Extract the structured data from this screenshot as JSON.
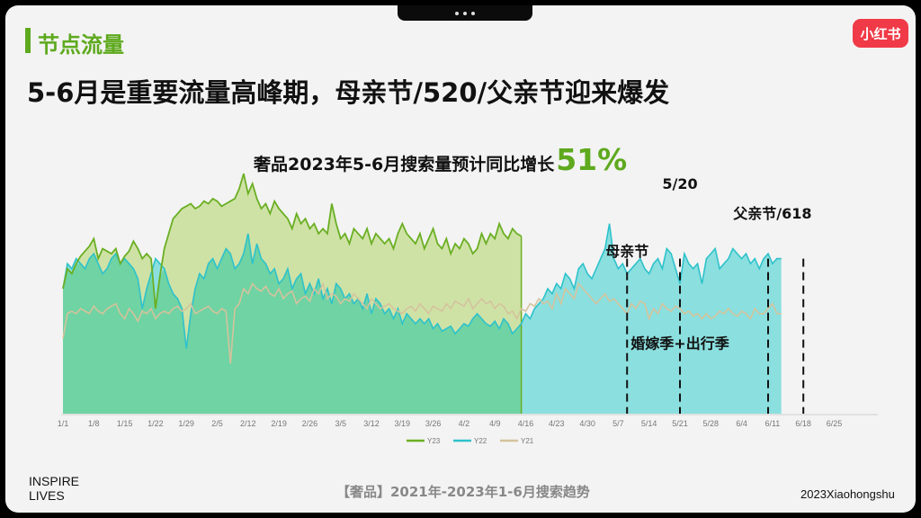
{
  "section_title": "节点流量",
  "logo_text": "小红书",
  "headline": "5-6月是重要流量高峰期，母亲节/520/父亲节迎来爆发",
  "footer": {
    "left_line1": "INSPIRE",
    "left_line2": "LIVES",
    "center": "【奢品】2021年-2023年1-6月搜索趋势",
    "right": "2023Xiaohongshu"
  },
  "chart_data": {
    "type": "area",
    "subtitle": "奢品2023年5-6月搜索量预计同比增长",
    "subtitle_value": "51%",
    "xlabel": "",
    "ylabel": "",
    "ylim": [
      0,
      100
    ],
    "grid": false,
    "legend_position": "bottom",
    "tick_labels": [
      "1/1",
      "1/8",
      "1/15",
      "1/22",
      "1/29",
      "2/5",
      "2/12",
      "2/19",
      "2/26",
      "3/5",
      "3/12",
      "3/19",
      "3/26",
      "4/2",
      "4/9",
      "4/16",
      "4/23",
      "4/30",
      "5/7",
      "5/14",
      "5/21",
      "5/28",
      "6/4",
      "6/11",
      "6/18",
      "6/25"
    ],
    "series": [
      {
        "name": "Y23",
        "color": "#6aaf23",
        "fill": "#cfe2a6",
        "start_day": 0,
        "values": [
          50,
          58,
          56,
          60,
          63,
          65,
          67,
          70,
          62,
          66,
          65,
          64,
          66,
          60,
          63,
          65,
          69,
          66,
          62,
          64,
          62,
          42,
          55,
          66,
          72,
          78,
          80,
          82,
          83,
          84,
          82,
          83,
          85,
          84,
          86,
          85,
          83,
          84,
          85,
          86,
          90,
          96,
          88,
          92,
          86,
          82,
          84,
          80,
          85,
          82,
          80,
          78,
          74,
          80,
          76,
          78,
          74,
          76,
          72,
          74,
          72,
          84,
          76,
          70,
          72,
          68,
          74,
          72,
          70,
          74,
          68,
          72,
          70,
          68,
          70,
          66,
          72,
          76,
          72,
          70,
          68,
          72,
          66,
          70,
          74,
          68,
          66,
          70,
          64,
          68,
          66,
          70,
          68,
          64,
          66,
          72,
          68,
          72,
          70,
          76,
          72,
          70,
          74,
          72,
          71
        ]
      },
      {
        "name": "Y22",
        "color": "#2ec2cb",
        "fill": "#8bdfdf",
        "start_day": 0,
        "values": [
          50,
          60,
          58,
          62,
          60,
          58,
          62,
          64,
          60,
          56,
          58,
          62,
          64,
          60,
          62,
          60,
          58,
          54,
          42,
          50,
          56,
          62,
          60,
          58,
          52,
          48,
          46,
          42,
          26,
          40,
          50,
          56,
          54,
          60,
          62,
          58,
          62,
          66,
          64,
          58,
          60,
          64,
          72,
          60,
          68,
          62,
          60,
          56,
          58,
          52,
          54,
          58,
          50,
          54,
          56,
          48,
          52,
          48,
          54,
          46,
          50,
          44,
          52,
          50,
          46,
          48,
          44,
          46,
          42,
          48,
          40,
          46,
          44,
          40,
          42,
          38,
          42,
          36,
          40,
          38,
          36,
          38,
          36,
          38,
          34,
          36,
          33,
          34,
          35,
          32,
          34,
          36,
          35,
          38,
          40,
          38,
          36,
          35,
          37,
          34,
          38,
          36,
          32,
          34,
          36,
          40,
          38,
          42,
          44,
          46,
          50,
          48,
          52,
          50,
          56,
          54,
          50,
          58,
          60,
          56,
          54,
          58,
          62,
          66,
          76,
          62,
          58,
          60,
          56,
          58,
          60,
          62,
          58,
          56,
          60,
          62,
          58,
          66,
          64,
          58,
          52,
          64,
          60,
          58,
          60,
          52,
          62,
          64,
          66,
          58,
          60,
          62,
          66,
          64,
          62,
          64,
          60,
          62,
          58,
          62,
          64,
          60,
          62,
          62
        ]
      },
      {
        "name": "Y21",
        "color": "#d4c39c",
        "start_day": 0,
        "values": [
          30,
          40,
          41,
          40,
          42,
          41,
          40,
          43,
          41,
          40,
          42,
          43,
          44,
          40,
          38,
          42,
          40,
          37,
          41,
          40,
          42,
          38,
          40,
          41,
          40,
          42,
          43,
          41,
          42,
          44,
          40,
          41,
          42,
          43,
          41,
          40,
          42,
          41,
          20,
          42,
          44,
          50,
          48,
          52,
          50,
          49,
          51,
          48,
          47,
          50,
          46,
          48,
          49,
          44,
          46,
          47,
          45,
          50,
          48,
          52,
          46,
          48,
          47,
          44,
          46,
          45,
          48,
          46,
          44,
          42,
          46,
          44,
          42,
          43,
          44,
          42,
          41,
          40,
          42,
          43,
          41,
          44,
          42,
          40,
          43,
          42,
          41,
          44,
          42,
          45,
          44,
          43,
          46,
          42,
          44,
          46,
          44,
          45,
          42,
          44,
          43,
          40,
          41,
          38,
          42,
          41,
          44,
          43,
          46,
          44,
          45,
          42,
          48,
          44,
          50,
          48,
          46,
          52,
          50,
          48,
          46,
          44,
          46,
          48,
          45,
          46,
          44,
          42,
          40,
          44,
          42,
          45,
          44,
          38,
          42,
          40,
          44,
          42,
          41,
          43,
          42,
          40,
          41,
          39,
          40,
          38,
          40,
          38,
          39,
          41,
          40,
          42,
          40,
          39,
          41,
          40,
          38,
          42,
          40,
          40,
          42,
          44,
          40,
          40
        ]
      }
    ],
    "annotations": [
      {
        "text": "5/20",
        "day": 140,
        "y": 90,
        "line": false
      },
      {
        "text": "母亲节",
        "day": 128,
        "y": 63,
        "line": true
      },
      {
        "text": "父亲节/618",
        "day": 161,
        "y": 78,
        "line": true
      },
      {
        "text": "婚嫁季+出行季",
        "day": 140,
        "y": 26,
        "line": false
      }
    ],
    "markers": [
      128,
      140,
      160,
      168
    ]
  }
}
